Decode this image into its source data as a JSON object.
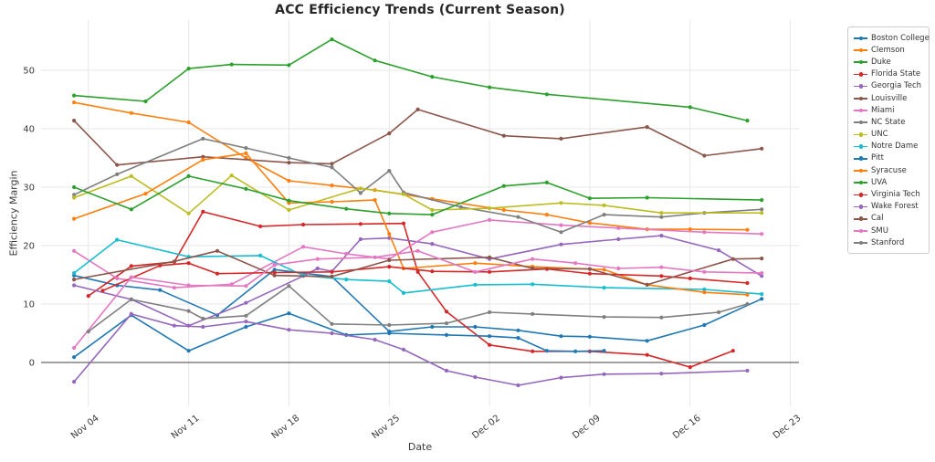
{
  "chart_data": {
    "type": "line",
    "title": "ACC Efficiency Trends (Current Season)",
    "xlabel": "Date",
    "ylabel": "Efficiency Margin",
    "grid": true,
    "zero_line": true,
    "legend_position": "right-outside",
    "x_unit": "days (0 = Nov 03)",
    "xlim": [
      -2.3,
      50.6
    ],
    "ylim": [
      -7.5,
      58.6
    ],
    "x_ticks": [
      {
        "day": 1,
        "label": "Nov 04"
      },
      {
        "day": 8,
        "label": "Nov 11"
      },
      {
        "day": 15,
        "label": "Nov 18"
      },
      {
        "day": 22,
        "label": "Nov 25"
      },
      {
        "day": 29,
        "label": "Dec 02"
      },
      {
        "day": 36,
        "label": "Dec 09"
      },
      {
        "day": 43,
        "label": "Dec 16"
      },
      {
        "day": 50,
        "label": "Dec 23"
      }
    ],
    "y_ticks": [
      0,
      10,
      20,
      30,
      40,
      50
    ],
    "series": [
      {
        "name": "Boston College",
        "color": "#1f77b4",
        "days": [
          0,
          3,
          6,
          10,
          14,
          18,
          22,
          25,
          28,
          31,
          34,
          36,
          40,
          44,
          48
        ],
        "values": [
          14.9,
          13.2,
          12.4,
          8.1,
          15.9,
          14.7,
          5.3,
          6.1,
          6.1,
          5.5,
          4.5,
          4.4,
          3.7,
          6.4,
          10.9
        ]
      },
      {
        "name": "Clemson",
        "color": "#ff7f0e",
        "days": [
          0,
          4,
          8,
          12,
          15,
          18,
          21,
          25,
          30,
          33,
          36,
          40,
          43,
          47
        ],
        "values": [
          44.5,
          42.7,
          41.1,
          35.0,
          31.1,
          30.3,
          29.5,
          28.0,
          26.1,
          25.3,
          23.9,
          22.8,
          22.8,
          22.7
        ]
      },
      {
        "name": "Duke",
        "color": "#2ca02c",
        "days": [
          0,
          5,
          8,
          11,
          15,
          18,
          21,
          25,
          29,
          33,
          43,
          47
        ],
        "values": [
          45.7,
          44.7,
          50.3,
          51.0,
          50.9,
          55.3,
          51.7,
          48.9,
          47.1,
          45.9,
          43.7,
          41.4
        ]
      },
      {
        "name": "Florida State",
        "color": "#d62728",
        "days": [
          1,
          4,
          7,
          9,
          13,
          16,
          20,
          23,
          24,
          26,
          29,
          32,
          36,
          40,
          43,
          46
        ],
        "values": [
          11.4,
          16.5,
          17.2,
          25.8,
          23.3,
          23.6,
          23.7,
          23.8,
          15.5,
          8.7,
          3.0,
          1.9,
          1.9,
          1.3,
          -0.8,
          2.0
        ]
      },
      {
        "name": "Georgia Tech",
        "color": "#9467bd",
        "days": [
          0,
          4,
          8,
          12,
          16,
          17,
          18,
          20,
          22,
          25,
          29,
          34,
          38,
          41,
          45,
          48
        ],
        "values": [
          13.2,
          10.8,
          6.3,
          10.2,
          14.8,
          16.1,
          15.6,
          21.1,
          21.3,
          20.3,
          17.7,
          20.2,
          21.1,
          21.7,
          19.2,
          14.8
        ]
      },
      {
        "name": "Louisville",
        "color": "#8c564b",
        "days": [
          0,
          3,
          9,
          15,
          18,
          22,
          24,
          30,
          34,
          40,
          44,
          48
        ],
        "values": [
          41.4,
          33.8,
          35.2,
          34.2,
          34.0,
          39.2,
          43.3,
          38.8,
          38.3,
          40.3,
          35.4,
          36.6
        ]
      },
      {
        "name": "Miami",
        "color": "#e377c2",
        "days": [
          0,
          3,
          7,
          11,
          16,
          19,
          22,
          25,
          29,
          34,
          38,
          44,
          48
        ],
        "values": [
          19.1,
          14.4,
          12.8,
          13.4,
          19.8,
          18.6,
          17.7,
          22.3,
          24.4,
          23.5,
          23.0,
          22.3,
          22.0
        ]
      },
      {
        "name": "NC State",
        "color": "#7f7f7f",
        "days": [
          0,
          3,
          9,
          12,
          15,
          18,
          20,
          22,
          23,
          27,
          31,
          34,
          37,
          41,
          44,
          48
        ],
        "values": [
          28.7,
          32.2,
          38.3,
          36.7,
          35.0,
          33.4,
          29.0,
          32.8,
          29.1,
          26.6,
          24.9,
          22.3,
          25.3,
          24.9,
          25.6,
          26.2
        ]
      },
      {
        "name": "UNC",
        "color": "#bcbd22",
        "days": [
          0,
          4,
          8,
          11,
          15,
          20,
          23,
          25,
          29,
          34,
          37,
          41,
          48
        ],
        "values": [
          28.2,
          31.9,
          25.5,
          32.0,
          26.1,
          29.8,
          28.8,
          26.1,
          26.4,
          27.3,
          26.9,
          25.6,
          25.6
        ]
      },
      {
        "name": "Notre Dame",
        "color": "#17becf",
        "days": [
          0,
          3,
          8,
          13,
          16,
          19,
          22,
          23,
          28,
          32,
          37,
          44,
          48
        ],
        "values": [
          15.3,
          21.0,
          18.1,
          18.3,
          14.9,
          14.2,
          13.9,
          11.9,
          13.3,
          13.4,
          12.8,
          12.5,
          11.7
        ]
      },
      {
        "name": "Pitt",
        "color": "#1f77b4",
        "days": [
          0,
          4,
          8,
          12,
          15,
          19,
          22,
          26,
          29,
          31,
          33,
          35,
          37
        ],
        "values": [
          0.9,
          8.1,
          2.0,
          6.1,
          8.4,
          4.7,
          5.0,
          4.7,
          4.5,
          4.2,
          2.0,
          1.9,
          2.0
        ]
      },
      {
        "name": "Syracuse",
        "color": "#ff7f0e",
        "days": [
          0,
          5,
          9,
          12,
          15,
          18,
          21,
          22,
          23,
          28,
          32,
          37,
          40,
          44,
          47
        ],
        "values": [
          24.6,
          28.9,
          34.7,
          35.8,
          27.3,
          27.5,
          27.8,
          22.0,
          16.1,
          17.0,
          16.4,
          15.9,
          13.3,
          12.0,
          11.6
        ]
      },
      {
        "name": "UVA",
        "color": "#2ca02c",
        "days": [
          0,
          4,
          8,
          12,
          15,
          19,
          22,
          25,
          30,
          33,
          36,
          40,
          48
        ],
        "values": [
          30.0,
          26.2,
          31.9,
          29.7,
          27.7,
          26.3,
          25.5,
          25.3,
          30.2,
          30.8,
          28.1,
          28.2,
          27.8
        ]
      },
      {
        "name": "Virginia Tech",
        "color": "#d62728",
        "days": [
          2,
          6,
          8,
          10,
          14,
          18,
          22,
          25,
          29,
          33,
          36,
          41,
          43,
          47
        ],
        "values": [
          12.3,
          16.6,
          17.0,
          15.2,
          15.4,
          15.5,
          16.4,
          15.6,
          15.5,
          16.0,
          15.2,
          14.8,
          14.4,
          13.6
        ]
      },
      {
        "name": "Wake Forest",
        "color": "#9467bd",
        "days": [
          0,
          4,
          7,
          9,
          12,
          15,
          18,
          21,
          23,
          26,
          28,
          31,
          34,
          37,
          41,
          47
        ],
        "values": [
          -3.3,
          8.3,
          6.3,
          6.1,
          7.0,
          5.6,
          5.0,
          3.9,
          2.2,
          -1.4,
          -2.5,
          -3.9,
          -2.6,
          -2.0,
          -1.9,
          -1.4
        ]
      },
      {
        "name": "Cal",
        "color": "#8c564b",
        "days": [
          0,
          7,
          10,
          14,
          18,
          22,
          29,
          32,
          36,
          40,
          46,
          48
        ],
        "values": [
          14.2,
          17.3,
          19.1,
          14.9,
          14.7,
          17.5,
          18.0,
          16.1,
          16.0,
          13.3,
          17.7,
          17.8
        ]
      },
      {
        "name": "SMU",
        "color": "#e377c2",
        "days": [
          0,
          4,
          8,
          12,
          14,
          17,
          21,
          24,
          28,
          32,
          35,
          38,
          41,
          44,
          48
        ],
        "values": [
          2.5,
          14.6,
          13.2,
          13.1,
          16.7,
          17.7,
          18.0,
          19.1,
          15.5,
          17.7,
          17.0,
          16.1,
          16.3,
          15.5,
          15.3
        ]
      },
      {
        "name": "Stanford",
        "color": "#7f7f7f",
        "days": [
          1,
          4,
          8,
          9,
          12,
          15,
          18,
          22,
          26,
          29,
          32,
          37,
          41,
          45,
          47
        ],
        "values": [
          5.3,
          10.8,
          8.8,
          7.5,
          8.0,
          13.1,
          6.6,
          6.4,
          6.7,
          8.6,
          8.3,
          7.8,
          7.7,
          8.6,
          10.0
        ]
      }
    ],
    "style_colors": {
      "grid": "#e7e7e9",
      "zero_line": "#404040",
      "tick_text": "#3a3a3a",
      "title_text": "#262626",
      "legend_border": "#cccccc"
    }
  }
}
